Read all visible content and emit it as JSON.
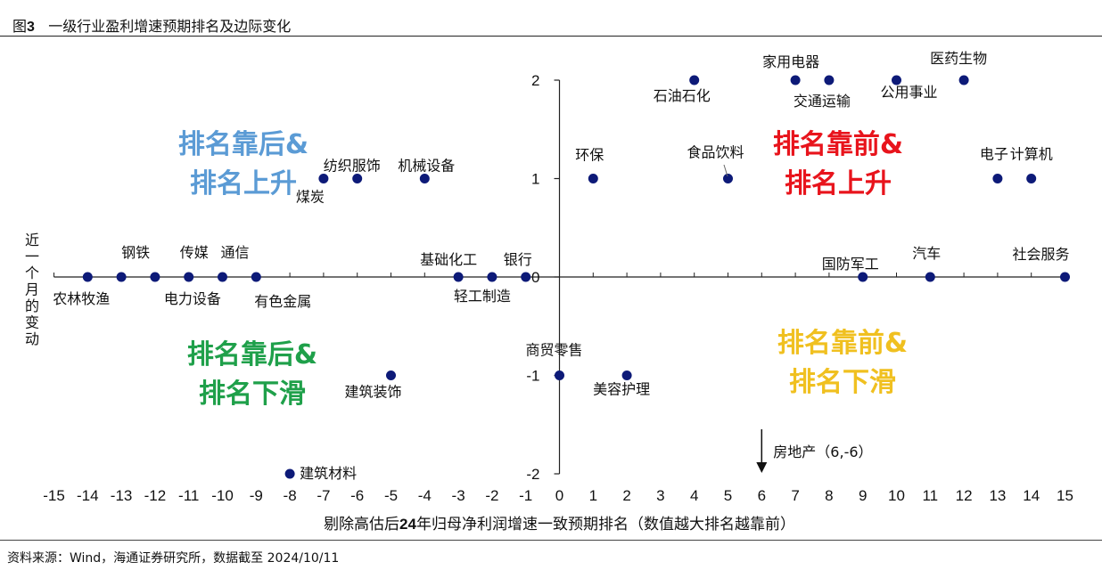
{
  "header": {
    "fig_prefix": "图",
    "fig_num": "3",
    "title": "一级行业盈利增速预期排名及边际变化"
  },
  "footer": {
    "source": "资料来源：Wind，海通证券研究所，数据截至 2024/10/11"
  },
  "colors": {
    "point": "#0d1a78",
    "axis": "#222222",
    "q2": "#5b9bd5",
    "q1": "#e8141c",
    "q3": "#1fa04a",
    "q4": "#f0c020"
  },
  "chart_data": {
    "type": "scatter",
    "title": "一级行业盈利增速预期排名及边际变化",
    "xlabel_parts": [
      "剔除高估后",
      "24",
      "年归母净利润增速一致预期排名（数值越大排名越靠前）"
    ],
    "ylabel": "近一个月的变动",
    "xlim": [
      -15,
      15
    ],
    "ylim": [
      -2,
      2
    ],
    "x_ticks": [
      "-15",
      "-14",
      "-13",
      "-12",
      "-11",
      "-10",
      "-9",
      "-8",
      "-7",
      "-6",
      "-5",
      "-4",
      "-3",
      "-2",
      "-1",
      "0",
      "1",
      "2",
      "3",
      "4",
      "5",
      "6",
      "7",
      "8",
      "9",
      "10",
      "11",
      "12",
      "13",
      "14",
      "15"
    ],
    "y_ticks": [
      "2",
      "1",
      "0",
      "-1",
      "-2"
    ],
    "points": [
      {
        "name": "农林牧渔",
        "x": -14,
        "y": 0
      },
      {
        "name": "钢铁",
        "x": -13,
        "y": 0
      },
      {
        "name": "电力设备",
        "x": -12,
        "y": 0
      },
      {
        "name": "传媒",
        "x": -11,
        "y": 0
      },
      {
        "name": "通信",
        "x": -10,
        "y": 0
      },
      {
        "name": "有色金属",
        "x": -9,
        "y": 0
      },
      {
        "name": "建筑材料",
        "x": -8,
        "y": -2
      },
      {
        "name": "煤炭",
        "x": -7,
        "y": 1
      },
      {
        "name": "纺织服饰",
        "x": -6,
        "y": 1
      },
      {
        "name": "建筑装饰",
        "x": -5,
        "y": -1
      },
      {
        "name": "机械设备",
        "x": -4,
        "y": 1
      },
      {
        "name": "基础化工",
        "x": -3,
        "y": 0
      },
      {
        "name": "轻工制造",
        "x": -2,
        "y": 0
      },
      {
        "name": "银行",
        "x": -1,
        "y": 0
      },
      {
        "name": "商贸零售",
        "x": 0,
        "y": -1
      },
      {
        "name": "环保",
        "x": 1,
        "y": 1
      },
      {
        "name": "美容护理",
        "x": 2,
        "y": -1
      },
      {
        "name": "石油石化",
        "x": 4,
        "y": 2
      },
      {
        "name": "食品饮料",
        "x": 5,
        "y": 1
      },
      {
        "name": "家用电器",
        "x": 7,
        "y": 2
      },
      {
        "name": "交通运输",
        "x": 8,
        "y": 2
      },
      {
        "name": "国防军工",
        "x": 9,
        "y": 0
      },
      {
        "name": "公用事业",
        "x": 10,
        "y": 2
      },
      {
        "name": "汽车",
        "x": 11,
        "y": 0
      },
      {
        "name": "医药生物",
        "x": 12,
        "y": 2
      },
      {
        "name": "电子",
        "x": 13,
        "y": 1
      },
      {
        "name": "计算机",
        "x": 14,
        "y": 1
      },
      {
        "name": "社会服务",
        "x": 15,
        "y": 0
      }
    ],
    "annotation": {
      "text": "房地产（6,-6）",
      "x": 6,
      "y": -2
    },
    "quadrants": [
      {
        "key": "q2",
        "line1": "排名靠后&",
        "line2": "排名上升"
      },
      {
        "key": "q1",
        "line1": "排名靠前&",
        "line2": "排名上升"
      },
      {
        "key": "q3",
        "line1": "排名靠后&",
        "line2": "排名下滑"
      },
      {
        "key": "q4",
        "line1": "排名靠前&",
        "line2": "排名下滑"
      }
    ]
  }
}
